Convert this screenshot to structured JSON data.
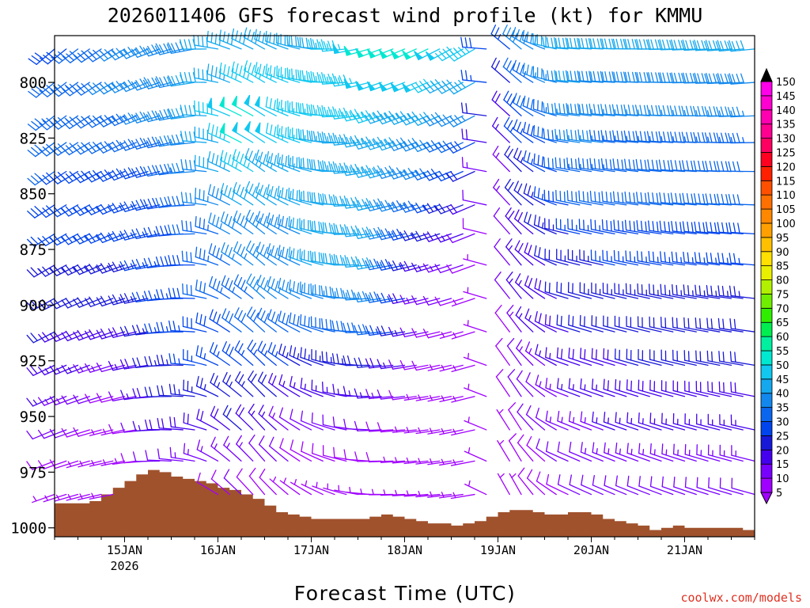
{
  "chart_data": {
    "type": "wind_barb_time_height",
    "title": "2026011406 GFS forecast wind profile (kt) for KMMU",
    "xlabel": "Forecast Time (UTC)",
    "ylabel": "",
    "credit": "coolwx.com/models",
    "x_range_hours": [
      0,
      180
    ],
    "x_ticks": [
      {
        "hour": 18,
        "label": "15JAN",
        "sublabel": "2026"
      },
      {
        "hour": 42,
        "label": "16JAN",
        "sublabel": ""
      },
      {
        "hour": 66,
        "label": "17JAN",
        "sublabel": ""
      },
      {
        "hour": 90,
        "label": "18JAN",
        "sublabel": ""
      },
      {
        "hour": 114,
        "label": "19JAN",
        "sublabel": ""
      },
      {
        "hour": 138,
        "label": "20JAN",
        "sublabel": ""
      },
      {
        "hour": 162,
        "label": "21JAN",
        "sublabel": ""
      }
    ],
    "y_range_hpa": [
      1004,
      779
    ],
    "y_ticks": [
      {
        "value": 800,
        "label": "800"
      },
      {
        "value": 825,
        "label": "825"
      },
      {
        "value": 850,
        "label": "850"
      },
      {
        "value": 875,
        "label": "875"
      },
      {
        "value": 900,
        "label": "900"
      },
      {
        "value": 925,
        "label": "925"
      },
      {
        "value": 950,
        "label": "950"
      },
      {
        "value": 975,
        "label": "975"
      },
      {
        "value": 1000,
        "label": "1000"
      }
    ],
    "pressure_levels": [
      785,
      800,
      815,
      827,
      840,
      855,
      868,
      882,
      897,
      912,
      927,
      941,
      956,
      970,
      985
    ],
    "time_step_hours": 3,
    "speed_key_points_kt": [
      {
        "h": 0,
        "s": [
          28,
          32,
          34,
          32,
          30,
          28,
          26,
          24,
          22,
          20,
          18,
          15,
          12,
          9,
          7
        ]
      },
      {
        "h": 18,
        "s": [
          35,
          36,
          34,
          30,
          28,
          26,
          25,
          24,
          22,
          18,
          12,
          8,
          6,
          5,
          5
        ]
      },
      {
        "h": 30,
        "s": [
          38,
          38,
          36,
          34,
          30,
          28,
          26,
          26,
          26,
          25,
          24,
          22,
          18,
          12,
          8
        ]
      },
      {
        "h": 48,
        "s": [
          42,
          45,
          52,
          50,
          46,
          42,
          38,
          36,
          34,
          30,
          28,
          24,
          20,
          14,
          10
        ]
      },
      {
        "h": 66,
        "s": [
          42,
          45,
          45,
          45,
          42,
          40,
          40,
          40,
          38,
          32,
          24,
          16,
          10,
          8,
          6
        ]
      },
      {
        "h": 84,
        "s": [
          52,
          48,
          45,
          44,
          44,
          42,
          42,
          40,
          36,
          30,
          22,
          15,
          10,
          8,
          6
        ]
      },
      {
        "h": 96,
        "s": [
          50,
          48,
          42,
          38,
          35,
          30,
          24,
          18,
          14,
          10,
          8,
          7,
          6,
          6,
          5
        ]
      },
      {
        "h": 108,
        "s": [
          45,
          40,
          35,
          28,
          22,
          18,
          12,
          8,
          7,
          6,
          6,
          5,
          5,
          5,
          5
        ]
      },
      {
        "h": 114,
        "s": [
          14,
          10,
          8,
          7,
          6,
          6,
          5,
          5,
          5,
          5,
          5,
          5,
          5,
          5,
          5
        ]
      },
      {
        "h": 120,
        "s": [
          38,
          32,
          28,
          25,
          22,
          20,
          18,
          16,
          15,
          14,
          12,
          10,
          9,
          8,
          7
        ]
      },
      {
        "h": 135,
        "s": [
          42,
          40,
          38,
          36,
          34,
          30,
          26,
          24,
          22,
          20,
          18,
          16,
          14,
          12,
          10
        ]
      },
      {
        "h": 150,
        "s": [
          40,
          38,
          36,
          34,
          32,
          30,
          28,
          26,
          24,
          22,
          20,
          18,
          16,
          14,
          12
        ]
      },
      {
        "h": 180,
        "s": [
          40,
          38,
          36,
          34,
          32,
          30,
          28,
          26,
          24,
          22,
          20,
          18,
          16,
          14,
          12
        ]
      }
    ],
    "direction_key_points_deg": [
      {
        "h": 0,
        "d": 240
      },
      {
        "h": 18,
        "d": 250
      },
      {
        "h": 36,
        "d": 270
      },
      {
        "h": 45,
        "d": 300
      },
      {
        "h": 54,
        "d": 310
      },
      {
        "h": 66,
        "d": 290
      },
      {
        "h": 84,
        "d": 260
      },
      {
        "h": 108,
        "d": 250
      },
      {
        "h": 114,
        "d": 320
      },
      {
        "h": 120,
        "d": 320
      },
      {
        "h": 132,
        "d": 285
      },
      {
        "h": 180,
        "d": 275
      }
    ],
    "gaps_hours": [
      [
        12.5,
        14.5
      ],
      [
        112.5,
        114.5
      ]
    ],
    "terrain_surface_pressure_hpa": [
      [
        0,
        989
      ],
      [
        6,
        989
      ],
      [
        9,
        988
      ],
      [
        12,
        985
      ],
      [
        15,
        982
      ],
      [
        18,
        979
      ],
      [
        21,
        976
      ],
      [
        24,
        974
      ],
      [
        27,
        975
      ],
      [
        30,
        977
      ],
      [
        33,
        978
      ],
      [
        36,
        979
      ],
      [
        39,
        980
      ],
      [
        42,
        982
      ],
      [
        45,
        983
      ],
      [
        48,
        985
      ],
      [
        51,
        987
      ],
      [
        54,
        990
      ],
      [
        57,
        993
      ],
      [
        60,
        994
      ],
      [
        63,
        995
      ],
      [
        66,
        996
      ],
      [
        69,
        996
      ],
      [
        72,
        996
      ],
      [
        75,
        996
      ],
      [
        78,
        996
      ],
      [
        81,
        995
      ],
      [
        84,
        994
      ],
      [
        87,
        995
      ],
      [
        90,
        996
      ],
      [
        93,
        997
      ],
      [
        96,
        998
      ],
      [
        99,
        998
      ],
      [
        102,
        999
      ],
      [
        105,
        998
      ],
      [
        108,
        997
      ],
      [
        111,
        995
      ],
      [
        114,
        993
      ],
      [
        117,
        992
      ],
      [
        120,
        992
      ],
      [
        123,
        993
      ],
      [
        126,
        994
      ],
      [
        129,
        994
      ],
      [
        132,
        993
      ],
      [
        135,
        993
      ],
      [
        138,
        994
      ],
      [
        141,
        996
      ],
      [
        144,
        997
      ],
      [
        147,
        998
      ],
      [
        150,
        999
      ],
      [
        153,
        1001
      ],
      [
        156,
        1000
      ],
      [
        159,
        999
      ],
      [
        162,
        1000
      ],
      [
        165,
        1000
      ],
      [
        168,
        1000
      ],
      [
        171,
        1000
      ],
      [
        174,
        1000
      ],
      [
        177,
        1001
      ],
      [
        180,
        1000
      ]
    ],
    "terrain_color": "#a0522d",
    "colorbar": {
      "levels": [
        5,
        10,
        15,
        20,
        25,
        30,
        35,
        40,
        45,
        50,
        55,
        60,
        65,
        70,
        75,
        80,
        85,
        90,
        95,
        100,
        105,
        110,
        115,
        120,
        125,
        130,
        135,
        140,
        145,
        150
      ],
      "labels": [
        "5",
        "10",
        "15",
        "20",
        "25",
        "30",
        "35",
        "40",
        "45",
        "50",
        "55",
        "60",
        "65",
        "70",
        "75",
        "80",
        "85",
        "90",
        "95",
        "100",
        "105",
        "110",
        "115",
        "120",
        "125",
        "130",
        "135",
        "140",
        "145",
        "150"
      ],
      "colors": [
        "#a000ff",
        "#7800ff",
        "#4400ee",
        "#1818d8",
        "#0044ee",
        "#0a66ee",
        "#1288ee",
        "#14a8ee",
        "#10c8f0",
        "#00e8d0",
        "#00f0a0",
        "#00ee50",
        "#30ee00",
        "#70ee00",
        "#b0f000",
        "#e8f000",
        "#ffe000",
        "#ffc000",
        "#ffa000",
        "#ff8800",
        "#ff7000",
        "#ff5000",
        "#ff2000",
        "#ff0020",
        "#ff0060",
        "#ff0090",
        "#ff00b0",
        "#ff00d0",
        "#ff00ea",
        "#000000"
      ]
    }
  }
}
